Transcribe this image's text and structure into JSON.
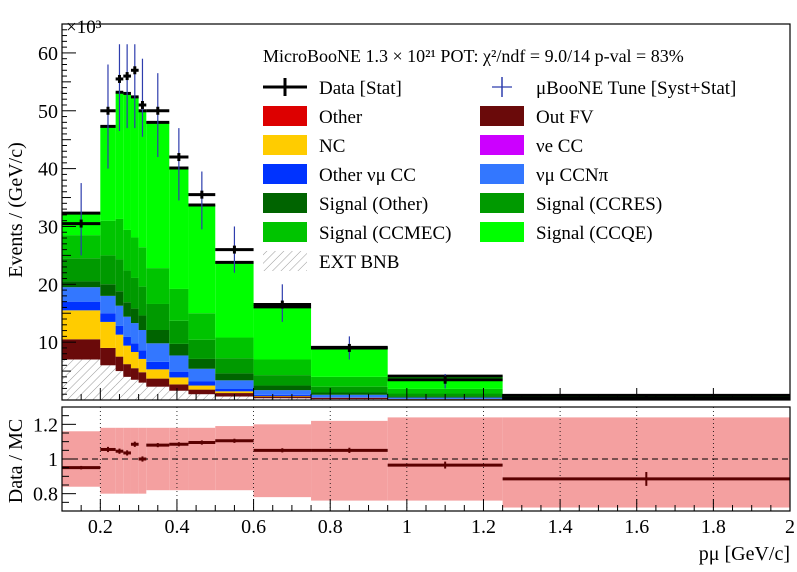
{
  "chart_data": [
    {
      "type": "bar",
      "stacked": true,
      "title": "MicroBooNE 1.3 × 10²¹ POT: χ²/ndf = 9.0/14 p-val = 83%",
      "ylabel": "Events / (GeV/c)",
      "yscale_label": "×10³",
      "xlim": [
        0.1,
        2.0
      ],
      "ylim": [
        0,
        65
      ],
      "yticks": [
        "10",
        "20",
        "30",
        "40",
        "50",
        "60"
      ],
      "bin_edges": [
        0.1,
        0.2,
        0.24,
        0.26,
        0.28,
        0.3,
        0.32,
        0.38,
        0.43,
        0.5,
        0.6,
        0.75,
        0.95,
        1.25,
        2.0
      ],
      "series": [
        {
          "name": "EXT BNB",
          "color": "hatch",
          "values": [
            7.0,
            6.0,
            5.0,
            4.0,
            3.5,
            3.0,
            2.3,
            1.6,
            1.0,
            0.6,
            0.3,
            0.15,
            0.05,
            0.02
          ]
        },
        {
          "name": "Out FV",
          "color": "#6a0a0a",
          "values": [
            3.5,
            3.0,
            2.5,
            2.2,
            2.0,
            1.8,
            1.4,
            1.1,
            0.8,
            0.6,
            0.3,
            0.2,
            0.1,
            0.05
          ]
        },
        {
          "name": "NC",
          "color": "#ffcc00",
          "values": [
            5.0,
            4.5,
            3.8,
            3.2,
            2.8,
            2.3,
            1.6,
            1.2,
            0.7,
            0.3,
            0.1,
            0.05,
            0.02,
            0.01
          ]
        },
        {
          "name": "Other νμ CC",
          "color": "#0033ff",
          "values": [
            1.5,
            1.5,
            1.5,
            1.5,
            1.5,
            1.5,
            1.3,
            1.0,
            0.7,
            0.4,
            0.2,
            0.1,
            0.05,
            0.02
          ]
        },
        {
          "name": "νμ CCNπ",
          "color": "#3377ff",
          "values": [
            2.5,
            3.0,
            3.5,
            3.5,
            3.5,
            3.5,
            3.2,
            2.8,
            2.2,
            1.5,
            0.8,
            0.4,
            0.2,
            0.05
          ]
        },
        {
          "name": "Signal (Other)",
          "color": "#006400",
          "values": [
            1.0,
            2.0,
            2.5,
            2.5,
            2.5,
            2.5,
            2.3,
            2.0,
            1.7,
            1.2,
            0.8,
            0.4,
            0.2,
            0.05
          ]
        },
        {
          "name": "Signal (CCRES)",
          "color": "#009a00",
          "values": [
            4.0,
            5.0,
            5.5,
            5.5,
            5.3,
            5.0,
            4.5,
            4.0,
            3.3,
            2.6,
            1.8,
            1.0,
            0.5,
            0.1
          ]
        },
        {
          "name": "Signal (CCMEC)",
          "color": "#00c400",
          "values": [
            4.0,
            6.0,
            7.0,
            7.0,
            7.0,
            6.8,
            6.2,
            5.5,
            4.6,
            3.6,
            2.7,
            1.7,
            0.8,
            0.15
          ]
        },
        {
          "name": "Signal (CCQE)",
          "color": "#00ff00",
          "values": [
            3.8,
            16.3,
            21.9,
            23.6,
            24.3,
            23.6,
            25.2,
            20.9,
            18.7,
            13.0,
            9.1,
            5.1,
            2.2,
            0.35
          ]
        }
      ],
      "data": {
        "name": "Data [Stat]",
        "x": [
          0.15,
          0.22,
          0.25,
          0.27,
          0.29,
          0.31,
          0.35,
          0.405,
          0.465,
          0.55,
          0.675,
          0.85,
          1.1,
          1.625
        ],
        "y": [
          30.5,
          50.0,
          55.5,
          56.0,
          57.0,
          51.0,
          50.0,
          42.0,
          35.5,
          26.0,
          16.5,
          9.0,
          3.5,
          0.3
        ]
      },
      "tune_error": {
        "name": "μBooNE Tune [Syst+Stat]",
        "low": [
          25.0,
          40.0,
          46.5,
          47.0,
          47.0,
          45.5,
          42.0,
          34.5,
          29.5,
          22.0,
          13.5,
          7.0,
          2.0,
          0.1
        ],
        "high": [
          37.5,
          58.0,
          61.5,
          61.5,
          61.5,
          59.0,
          56.5,
          47.0,
          39.5,
          30.0,
          20.0,
          11.0,
          4.5,
          0.6
        ]
      },
      "legend": [
        [
          "Data [Stat]",
          "μBooNE Tune [Syst+Stat]"
        ],
        [
          "Other",
          "Out FV"
        ],
        [
          "NC",
          "νe CC"
        ],
        [
          "Other νμ CC",
          "νμ CCNπ"
        ],
        [
          "Signal (Other)",
          "Signal (CCRES)"
        ],
        [
          "Signal (CCMEC)",
          "Signal (CCQE)"
        ],
        [
          "EXT BNB",
          ""
        ]
      ],
      "legend_colors": {
        "Other": "#dd0000",
        "Out FV": "#6a0a0a",
        "NC": "#ffcc00",
        "νe CC": "#cc00ff",
        "Other νμ CC": "#0033ff",
        "νμ CCNπ": "#3377ff",
        "Signal (Other)": "#006400",
        "Signal (CCRES)": "#009a00",
        "Signal (CCMEC)": "#00c400",
        "Signal (CCQE)": "#00ff00",
        "EXT BNB": "hatch"
      }
    },
    {
      "type": "scatter",
      "ylabel": "Data / MC",
      "xlabel": "pμ [GeV/c]",
      "xlim": [
        0.1,
        2.0
      ],
      "ylim": [
        0.7,
        1.3
      ],
      "xticks": [
        "0.2",
        "0.4",
        "0.6",
        "0.8",
        "1",
        "1.2",
        "1.4",
        "1.6",
        "1.8",
        "2"
      ],
      "yticks": [
        "0.8",
        "1",
        "1.2"
      ],
      "band_color": "#f4a0a0",
      "band_low": [
        0.84,
        0.8,
        0.8,
        0.8,
        0.8,
        0.8,
        0.82,
        0.82,
        0.82,
        0.82,
        0.78,
        0.76,
        0.76,
        0.72
      ],
      "band_high": [
        1.16,
        1.18,
        1.18,
        1.18,
        1.18,
        1.18,
        1.18,
        1.18,
        1.18,
        1.19,
        1.2,
        1.22,
        1.24,
        1.24
      ],
      "ratio": [
        0.95,
        1.055,
        1.045,
        1.035,
        1.085,
        1.0,
        1.08,
        1.085,
        1.095,
        1.105,
        1.05,
        1.05,
        0.965,
        0.885
      ],
      "ratio_err": [
        0.01,
        0.015,
        0.015,
        0.015,
        0.015,
        0.015,
        0.012,
        0.012,
        0.012,
        0.012,
        0.012,
        0.015,
        0.02,
        0.04
      ]
    }
  ]
}
